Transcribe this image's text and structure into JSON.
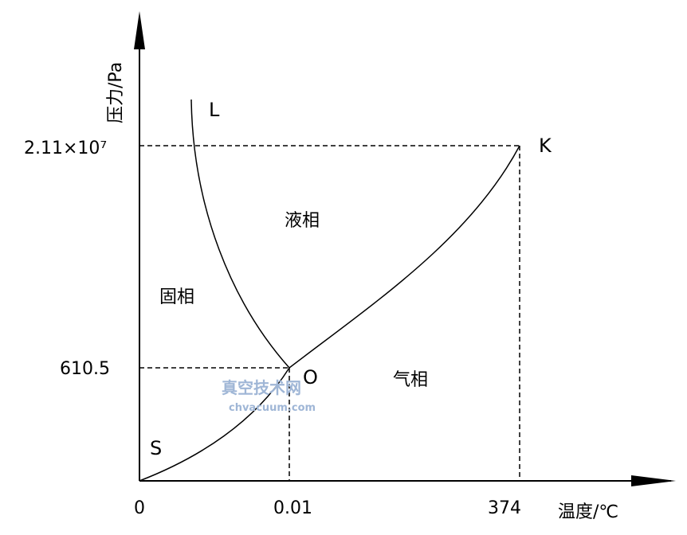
{
  "diagram": {
    "y_axis_label": "压力/Pa",
    "x_axis_label": "温度/℃",
    "x_ticks": [
      "0",
      "0.01",
      "374"
    ],
    "y_ticks": [
      "2.11×10⁷",
      "610.5"
    ],
    "points": {
      "L": "L",
      "K": "K",
      "O": "O",
      "S": "S"
    },
    "regions": {
      "liquid": "液相",
      "solid": "固相",
      "gas": "气相"
    }
  },
  "watermark": {
    "cn": "真空技术网",
    "url": "chvacuum.com"
  }
}
